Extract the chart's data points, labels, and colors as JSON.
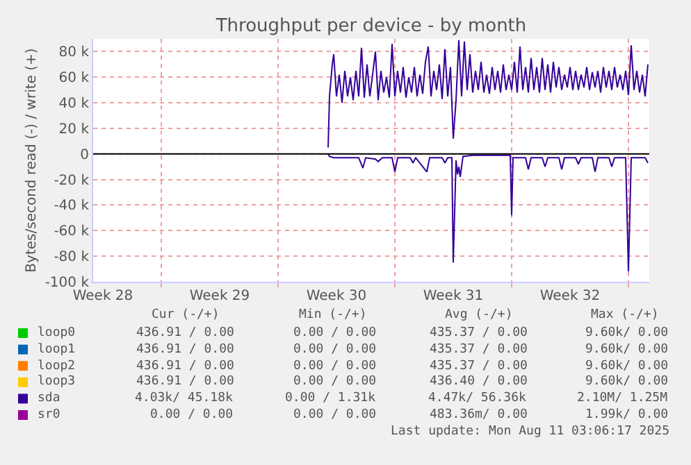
{
  "chart_data": {
    "type": "line",
    "title": "Throughput per device - by month",
    "ylabel": "Bytes/second read (-) / write (+)",
    "xlim": [
      "2025-07-08T22:00",
      "2025-08-11T06:00"
    ],
    "xticks": [
      {
        "value": "2025-07-09T12:00",
        "label": "Week 28"
      },
      {
        "value": "2025-07-13",
        "label": null
      },
      {
        "value": "2025-07-16T12:00",
        "label": "Week 29"
      },
      {
        "value": "2025-07-20",
        "label": null
      },
      {
        "value": "2025-07-23T12:00",
        "label": "Week 30"
      },
      {
        "value": "2025-07-27",
        "label": null
      },
      {
        "value": "2025-07-30T12:00",
        "label": "Week 31"
      },
      {
        "value": "2025-08-03",
        "label": null
      },
      {
        "value": "2025-08-06T12:00",
        "label": "Week 32"
      },
      {
        "value": "2025-08-10",
        "label": null
      }
    ],
    "ylim": [
      -100000,
      90000
    ],
    "yticks": [
      {
        "value": -100000,
        "label": "-100 k"
      },
      {
        "value": -80000,
        "label": "-80 k"
      },
      {
        "value": -60000,
        "label": "-60 k"
      },
      {
        "value": -40000,
        "label": "-40 k"
      },
      {
        "value": -20000,
        "label": "-20 k"
      },
      0,
      {
        "value": 20000,
        "label": "20 k"
      },
      {
        "value": 40000,
        "label": "40 k"
      },
      {
        "value": 60000,
        "label": "60 k"
      },
      {
        "value": 80000,
        "label": "80 k"
      }
    ],
    "grid": true,
    "legend": "bottom",
    "marker": "none",
    "line_style": "solid",
    "ref_lines": [
      {
        "axis": "y",
        "value": 0,
        "color": "#000000"
      }
    ],
    "series": [
      {
        "name": "loop0",
        "color": "#00cc00"
      },
      {
        "name": "loop1",
        "color": "#0066b3"
      },
      {
        "name": "loop2",
        "color": "#ff8000"
      },
      {
        "name": "loop3",
        "color": "#ffcc00"
      },
      {
        "name": "sda",
        "color": "#330099",
        "x": [
          "2025-07-23T00:00",
          "2025-07-23T02:00",
          "2025-07-23T06:00",
          "2025-07-23T08:00",
          "2025-07-23T12:00",
          "2025-07-23T16:00",
          "2025-07-23T20:00",
          "2025-07-24T00:00",
          "2025-07-24T04:00",
          "2025-07-24T08:00",
          "2025-07-24T12:00",
          "2025-07-24T16:00",
          "2025-07-24T20:00",
          "2025-07-25T00:00",
          "2025-07-25T04:00",
          "2025-07-25T08:00",
          "2025-07-25T12:00",
          "2025-07-25T16:00",
          "2025-07-25T20:00",
          "2025-07-26T00:00",
          "2025-07-26T04:00",
          "2025-07-26T08:00",
          "2025-07-26T12:00",
          "2025-07-26T16:00",
          "2025-07-26T20:00",
          "2025-07-27T00:00",
          "2025-07-27T04:00",
          "2025-07-27T08:00",
          "2025-07-27T12:00",
          "2025-07-27T16:00",
          "2025-07-27T20:00",
          "2025-07-28T00:00",
          "2025-07-28T04:00",
          "2025-07-28T08:00",
          "2025-07-28T12:00",
          "2025-07-28T16:00",
          "2025-07-28T20:00",
          "2025-07-29T00:00",
          "2025-07-29T04:00",
          "2025-07-29T08:00",
          "2025-07-29T12:00",
          "2025-07-29T16:00",
          "2025-07-29T20:00",
          "2025-07-30T00:00",
          "2025-07-30T04:00",
          "2025-07-30T08:00",
          "2025-07-30T12:00",
          "2025-07-30T16:00",
          "2025-07-30T20:00",
          "2025-07-31T00:00",
          "2025-07-31T04:00",
          "2025-07-31T08:00",
          "2025-07-31T12:00",
          "2025-07-31T16:00",
          "2025-07-31T20:00",
          "2025-08-01T00:00",
          "2025-08-01T04:00",
          "2025-08-01T08:00",
          "2025-08-01T12:00",
          "2025-08-01T16:00",
          "2025-08-01T20:00",
          "2025-08-02T00:00",
          "2025-08-02T04:00",
          "2025-08-02T08:00",
          "2025-08-02T12:00",
          "2025-08-02T16:00",
          "2025-08-02T20:00",
          "2025-08-03T00:00",
          "2025-08-03T04:00",
          "2025-08-03T08:00",
          "2025-08-03T12:00",
          "2025-08-03T16:00",
          "2025-08-03T20:00",
          "2025-08-04T00:00",
          "2025-08-04T04:00",
          "2025-08-04T08:00",
          "2025-08-04T12:00",
          "2025-08-04T16:00",
          "2025-08-04T20:00",
          "2025-08-05T00:00",
          "2025-08-05T04:00",
          "2025-08-05T08:00",
          "2025-08-05T12:00",
          "2025-08-05T16:00",
          "2025-08-05T20:00",
          "2025-08-06T00:00",
          "2025-08-06T04:00",
          "2025-08-06T08:00",
          "2025-08-06T12:00",
          "2025-08-06T16:00",
          "2025-08-06T20:00",
          "2025-08-07T00:00",
          "2025-08-07T04:00",
          "2025-08-07T08:00",
          "2025-08-07T12:00",
          "2025-08-07T16:00",
          "2025-08-07T20:00",
          "2025-08-08T00:00",
          "2025-08-08T04:00",
          "2025-08-08T08:00",
          "2025-08-08T12:00",
          "2025-08-08T16:00",
          "2025-08-08T20:00",
          "2025-08-09T00:00",
          "2025-08-09T04:00",
          "2025-08-09T08:00",
          "2025-08-09T12:00",
          "2025-08-09T16:00",
          "2025-08-09T20:00",
          "2025-08-10T00:00",
          "2025-08-10T04:00",
          "2025-08-10T08:00",
          "2025-08-10T12:00",
          "2025-08-10T16:00",
          "2025-08-10T20:00",
          "2025-08-11T00:00",
          "2025-08-11T04:00"
        ],
        "values": [
          5000,
          45000,
          70000,
          78000,
          45000,
          62000,
          40000,
          65000,
          45000,
          60000,
          42000,
          65000,
          45000,
          83000,
          44000,
          70000,
          45000,
          62000,
          80000,
          42000,
          65000,
          48000,
          60000,
          44000,
          86000,
          45000,
          65000,
          48000,
          68000,
          44000,
          60000,
          48000,
          68000,
          45000,
          62000,
          47000,
          72000,
          84000,
          45000,
          65000,
          50000,
          70000,
          43000,
          82000,
          45000,
          68000,
          12000,
          42000,
          89000,
          45000,
          88000,
          50000,
          78000,
          48000,
          65000,
          50000,
          72000,
          48000,
          62000,
          47000,
          68000,
          50000,
          65000,
          48000,
          70000,
          50000,
          62000,
          50000,
          72000,
          48000,
          84000,
          50000,
          68000,
          48000,
          75000,
          50000,
          68000,
          48000,
          75000,
          50000,
          70000,
          48000,
          72000,
          52000,
          68000,
          50000,
          62000,
          52000,
          68000,
          50000,
          65000,
          50000,
          62000,
          52000,
          68000,
          50000,
          64000,
          52000,
          65000,
          48000,
          68000,
          52000,
          65000,
          50000,
          68000,
          52000,
          62000,
          50000,
          65000,
          46000,
          85000,
          50000,
          65000,
          48000,
          62000,
          45000,
          70000
        ]
      },
      {
        "color": "#330099",
        "x": [
          "2025-07-23T00:00",
          "2025-07-23T02:00",
          "2025-07-23T08:00",
          "2025-07-24T04:00",
          "2025-07-24T20:00",
          "2025-07-25T02:00",
          "2025-07-25T06:00",
          "2025-07-25T20:00",
          "2025-07-26T00:00",
          "2025-07-26T06:00",
          "2025-07-26T20:00",
          "2025-07-27T00:00",
          "2025-07-27T04:00",
          "2025-07-27T22:00",
          "2025-07-28T02:00",
          "2025-07-28T06:00",
          "2025-07-28T22:00",
          "2025-07-29T02:00",
          "2025-07-29T20:00",
          "2025-07-30T00:00",
          "2025-07-30T04:00",
          "2025-07-30T10:00",
          "2025-07-30T12:00",
          "2025-07-30T16:00",
          "2025-07-30T18:00",
          "2025-07-30T20:00",
          "2025-07-30T22:00",
          "2025-07-31T02:00",
          "2025-07-31T16:00",
          "2025-08-01T12:00",
          "2025-08-02T08:00",
          "2025-08-02T22:00",
          "2025-08-03T00:00",
          "2025-08-03T02:00",
          "2025-08-03T20:00",
          "2025-08-04T00:00",
          "2025-08-04T04:00",
          "2025-08-04T20:00",
          "2025-08-05T00:00",
          "2025-08-05T04:00",
          "2025-08-05T20:00",
          "2025-08-06T00:00",
          "2025-08-06T04:00",
          "2025-08-06T20:00",
          "2025-08-07T00:00",
          "2025-08-07T04:00",
          "2025-08-07T20:00",
          "2025-08-08T00:00",
          "2025-08-08T04:00",
          "2025-08-08T20:00",
          "2025-08-09T00:00",
          "2025-08-09T04:00",
          "2025-08-09T20:00",
          "2025-08-10T00:00",
          "2025-08-10T04:00",
          "2025-08-11T00:00",
          "2025-08-11T04:00"
        ],
        "values": [
          0,
          -2000,
          -3000,
          -3000,
          -3000,
          -11000,
          -3000,
          -4000,
          -6000,
          -3000,
          -3000,
          -14000,
          -3000,
          -3000,
          -7000,
          -3000,
          -14000,
          -3000,
          -3000,
          -7000,
          -3000,
          -3000,
          -85000,
          -5000,
          -16000,
          -10000,
          -18000,
          -2000,
          -1000,
          -1000,
          -1000,
          -1000,
          -48000,
          -3000,
          -3000,
          -12000,
          -3000,
          -3000,
          -10000,
          -3000,
          -3000,
          -12000,
          -3000,
          -3000,
          -8000,
          -3000,
          -3000,
          -14000,
          -3000,
          -3000,
          -10000,
          -3000,
          -3000,
          -92000,
          -3000,
          -3000,
          -7000
        ]
      },
      {
        "name": "sr0",
        "color": "#990099"
      }
    ],
    "annotations": [
      "Cur (-/+)",
      "Min (-/+)",
      "Avg (-/+)",
      "Max (-/+)",
      "436.91 / 0.00",
      "0.00 / 0.00",
      "435.37 / 0.00",
      "9.60k/ 0.00",
      "436.91 / 0.00",
      "0.00 / 0.00",
      "435.37 / 0.00",
      "9.60k/ 0.00",
      "436.91 / 0.00",
      "0.00 / 0.00",
      "435.37 / 0.00",
      "9.60k/ 0.00",
      "436.91 / 0.00",
      "0.00 / 0.00",
      "436.40 / 0.00",
      "9.60k/ 0.00",
      "4.03k/ 45.18k",
      "0.00 / 1.31k",
      "4.47k/ 56.36k",
      "2.10M/ 1.25M",
      "0.00 / 0.00",
      "0.00 / 0.00",
      "483.36m/ 0.00",
      "1.99k/ 0.00",
      "Last update: Mon Aug 11 03:06:17 2025"
    ]
  }
}
